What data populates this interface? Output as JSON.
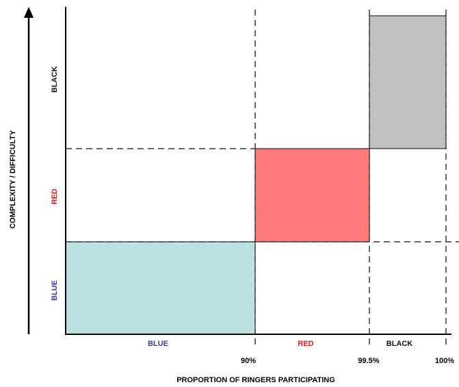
{
  "y_axis": {
    "title": "COMPLEXITY / DIFFICULTY",
    "levels": [
      {
        "label": "BLUE",
        "color": "#3a3aa8"
      },
      {
        "label": "RED",
        "color": "#e0201c"
      },
      {
        "label": "BLACK",
        "color": "#111111"
      }
    ]
  },
  "x_axis": {
    "title": "PROPORTION OF RINGERS PARTICIPATING",
    "ticks": [
      {
        "label": "90%",
        "value": 90
      },
      {
        "label": "99.5%",
        "value": 99.5
      },
      {
        "label": "100%",
        "value": 100
      }
    ],
    "band_labels": [
      {
        "label": "BLUE",
        "color": "#3a3aa8"
      },
      {
        "label": "RED",
        "color": "#e0201c"
      },
      {
        "label": "BLACK",
        "color": "#111111"
      }
    ]
  },
  "blocks": [
    {
      "level": "BLUE",
      "fill": "#bde0e3"
    },
    {
      "level": "RED",
      "fill": "#ff7b7b"
    },
    {
      "level": "BLACK",
      "fill": "#c0c0c0"
    }
  ]
}
